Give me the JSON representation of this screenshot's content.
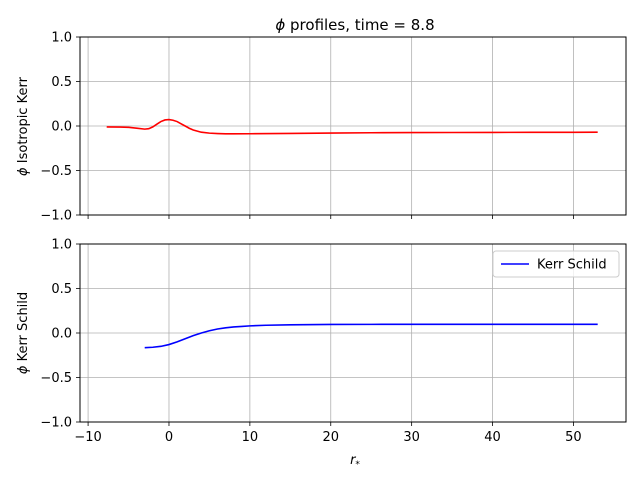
{
  "chart_data": {
    "type": "line",
    "title_prefix": "ϕ",
    "title_rest": " profiles, time = 8.8",
    "xlabel_main": "r",
    "xlabel_sub": "*",
    "xlim": [
      -11,
      56.5
    ],
    "xticks": [
      -10,
      0,
      10,
      20,
      30,
      40,
      50
    ],
    "panels": [
      {
        "ylabel_prefix": "ϕ",
        "ylabel_rest": " Isotropic Kerr",
        "ylim": [
          -1.0,
          1.0
        ],
        "yticks": [
          -1.0,
          -0.5,
          0.0,
          0.5,
          1.0
        ],
        "grid": true,
        "legend": null,
        "series": [
          {
            "name": "",
            "color": "#ff0000",
            "x": [
              -7.7,
              -6,
              -5,
              -4,
              -3,
              -2.5,
              -2,
              -1.5,
              -1,
              -0.5,
              0,
              0.5,
              1,
              1.5,
              2,
              2.5,
              3,
              4,
              5,
              6,
              7,
              8,
              10,
              15,
              20,
              25,
              30,
              35,
              40,
              45,
              50,
              53
            ],
            "y": [
              -0.01,
              -0.012,
              -0.015,
              -0.025,
              -0.035,
              -0.03,
              -0.01,
              0.02,
              0.05,
              0.068,
              0.072,
              0.065,
              0.05,
              0.025,
              0.0,
              -0.025,
              -0.045,
              -0.07,
              -0.08,
              -0.085,
              -0.088,
              -0.088,
              -0.087,
              -0.083,
              -0.079,
              -0.076,
              -0.074,
              -0.073,
              -0.072,
              -0.071,
              -0.071,
              -0.07
            ]
          }
        ]
      },
      {
        "ylabel_prefix": "ϕ",
        "ylabel_rest": " Kerr Schild",
        "ylim": [
          -1.0,
          1.0
        ],
        "yticks": [
          -1.0,
          -0.5,
          0.0,
          0.5,
          1.0
        ],
        "grid": true,
        "legend": "upper right",
        "series": [
          {
            "name": "Kerr Schild",
            "color": "#0000ff",
            "x": [
              -3,
              -2,
              -1,
              0,
              1,
              2,
              3,
              4,
              5,
              6,
              7,
              8,
              9,
              10,
              12,
              15,
              20,
              25,
              30,
              35,
              40,
              45,
              50,
              53
            ],
            "y": [
              -0.165,
              -0.16,
              -0.15,
              -0.13,
              -0.1,
              -0.065,
              -0.03,
              0.0,
              0.025,
              0.045,
              0.058,
              0.068,
              0.074,
              0.08,
              0.087,
              0.092,
              0.096,
              0.097,
              0.098,
              0.098,
              0.098,
              0.098,
              0.098,
              0.098
            ]
          }
        ]
      }
    ]
  }
}
